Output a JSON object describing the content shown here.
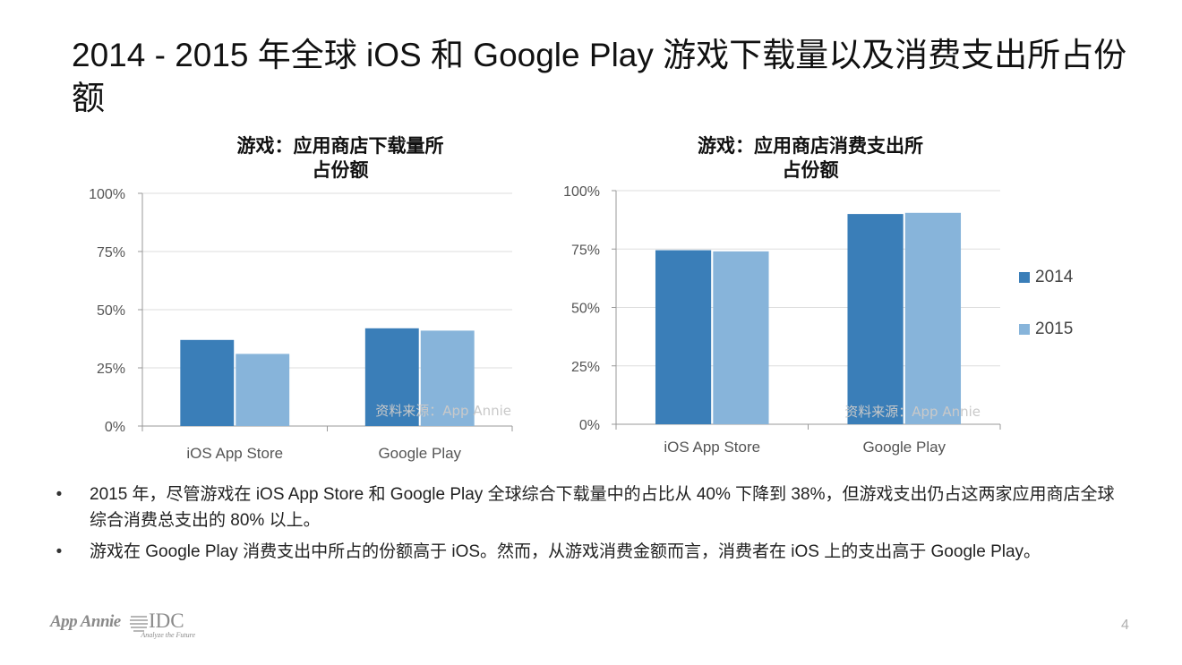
{
  "slide": {
    "title": "2014 - 2015 年全球 iOS 和 Google Play 游戏下载量以及消费支出所占份额",
    "page_number": "4"
  },
  "colors": {
    "series_2014": "#3A7EB8",
    "series_2015": "#87B4DA",
    "axis": "#999999"
  },
  "legend": {
    "position": "right",
    "items": [
      "2014",
      "2015"
    ]
  },
  "chart_data": [
    {
      "type": "bar",
      "title": "游戏：应用商店下载量所占份额",
      "title_lines": [
        "游戏：应用商店下载量所",
        "占份额"
      ],
      "categories": [
        "iOS App Store",
        "Google Play"
      ],
      "series": [
        {
          "name": "2014",
          "values": [
            0.37,
            0.42
          ]
        },
        {
          "name": "2015",
          "values": [
            0.31,
            0.41
          ]
        }
      ],
      "y_ticks": [
        "0%",
        "25%",
        "50%",
        "75%",
        "100%"
      ],
      "ylim": [
        0,
        1
      ],
      "grid": true,
      "source_note": "资料来源：App Annie"
    },
    {
      "type": "bar",
      "title": "游戏：应用商店消费支出所占份额",
      "title_lines": [
        "游戏：应用商店消费支出所",
        "占份额"
      ],
      "categories": [
        "iOS App Store",
        "Google Play"
      ],
      "series": [
        {
          "name": "2014",
          "values": [
            0.745,
            0.9
          ]
        },
        {
          "name": "2015",
          "values": [
            0.74,
            0.905
          ]
        }
      ],
      "y_ticks": [
        "0%",
        "25%",
        "50%",
        "75%",
        "100%"
      ],
      "ylim": [
        0,
        1
      ],
      "grid": true,
      "source_note": "资料来源：App Annie"
    }
  ],
  "bullets": [
    "2015 年，尽管游戏在 iOS App Store 和 Google Play 全球综合下载量中的占比从 40% 下降到 38%，但游戏支出仍占这两家应用商店全球综合消费总支出的 80% 以上。",
    "游戏在 Google Play 消费支出中所占的份额高于 iOS。然而，从游戏消费金额而言，消费者在 iOS 上的支出高于 Google Play。"
  ],
  "footer": {
    "logo_app_annie": "App Annie",
    "logo_idc": "IDC",
    "logo_idc_tagline": "Analyze the Future"
  }
}
